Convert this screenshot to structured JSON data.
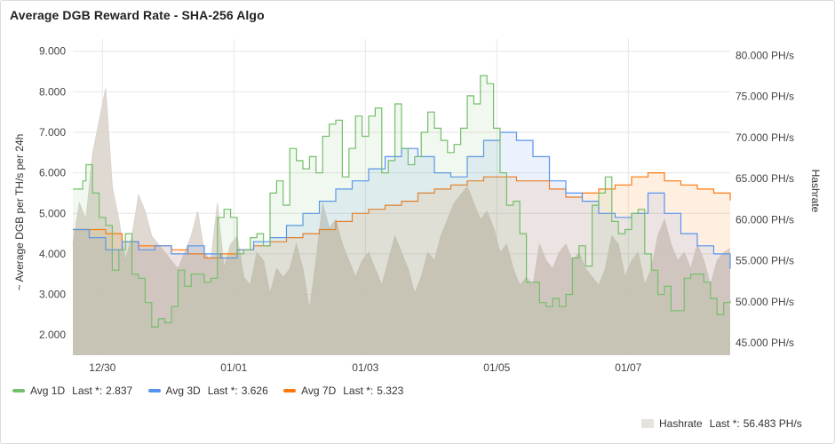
{
  "panel": {
    "title": "Average DGB Reward Rate - SHA-256 Algo"
  },
  "chart_data": {
    "type": "line",
    "title": "Average DGB Reward Rate - SHA-256 Algo",
    "ylabel": "~ Average DGB per TH/s per 24h",
    "ylabel_right": "Hashrate",
    "ylim": [
      1.5,
      9.3
    ],
    "ylim_right": [
      43.5,
      82.0
    ],
    "yticks": [
      "2.000",
      "3.000",
      "4.000",
      "5.000",
      "6.000",
      "7.000",
      "8.000",
      "9.000"
    ],
    "yticks_right": [
      "45.000 PH/s",
      "50.000 PH/s",
      "55.000 PH/s",
      "60.000 PH/s",
      "65.000 PH/s",
      "70.000 PH/s",
      "75.000 PH/s",
      "80.000 PH/s"
    ],
    "xlim": [
      0,
      10
    ],
    "xticks": [
      {
        "x": 0.45,
        "label": "12/30"
      },
      {
        "x": 2.45,
        "label": "01/01"
      },
      {
        "x": 4.45,
        "label": "01/03"
      },
      {
        "x": 6.45,
        "label": "01/05"
      },
      {
        "x": 8.45,
        "label": "01/07"
      }
    ],
    "grid": true,
    "legend_position": "bottom",
    "series": [
      {
        "name": "Avg 1D",
        "color": "#73bf69",
        "axis": "left",
        "last": "2.837",
        "x": [
          0,
          0.15,
          0.2,
          0.3,
          0.4,
          0.5,
          0.6,
          0.7,
          0.8,
          0.9,
          1.0,
          1.1,
          1.2,
          1.3,
          1.4,
          1.5,
          1.6,
          1.7,
          1.8,
          1.9,
          2.0,
          2.1,
          2.2,
          2.3,
          2.4,
          2.5,
          2.6,
          2.7,
          2.8,
          2.9,
          3.0,
          3.1,
          3.2,
          3.3,
          3.4,
          3.5,
          3.6,
          3.7,
          3.8,
          3.9,
          4.0,
          4.1,
          4.2,
          4.3,
          4.4,
          4.5,
          4.6,
          4.7,
          4.8,
          4.9,
          5.0,
          5.1,
          5.2,
          5.3,
          5.4,
          5.5,
          5.6,
          5.7,
          5.8,
          5.9,
          6.0,
          6.1,
          6.2,
          6.3,
          6.4,
          6.5,
          6.6,
          6.7,
          6.8,
          6.9,
          7.0,
          7.1,
          7.2,
          7.3,
          7.4,
          7.5,
          7.6,
          7.7,
          7.8,
          7.9,
          8.0,
          8.1,
          8.2,
          8.3,
          8.4,
          8.5,
          8.6,
          8.7,
          8.8,
          8.9,
          9.0,
          9.1,
          9.2,
          9.3,
          9.4,
          9.5,
          9.6,
          9.7,
          9.8,
          9.9,
          10.0
        ],
        "y": [
          5.6,
          5.8,
          6.2,
          5.5,
          4.9,
          4.7,
          3.6,
          4.1,
          4.5,
          3.5,
          3.4,
          2.8,
          2.2,
          2.4,
          2.3,
          2.7,
          3.6,
          3.2,
          3.5,
          3.5,
          3.3,
          3.4,
          4.9,
          5.1,
          4.9,
          4.0,
          4.1,
          4.4,
          4.5,
          4.2,
          5.5,
          5.8,
          5.2,
          6.6,
          6.3,
          6.1,
          6.4,
          6.0,
          6.9,
          7.2,
          7.3,
          5.9,
          6.6,
          7.4,
          6.9,
          7.4,
          7.6,
          6.0,
          6.3,
          7.7,
          6.6,
          6.2,
          6.4,
          7.0,
          7.5,
          7.1,
          6.8,
          6.5,
          6.7,
          7.1,
          7.9,
          7.7,
          8.4,
          8.2,
          7.1,
          6.0,
          5.2,
          5.3,
          4.5,
          3.3,
          3.3,
          2.8,
          2.7,
          2.9,
          2.7,
          3.0,
          3.9,
          4.2,
          3.7,
          5.2,
          5.5,
          5.9,
          4.8,
          4.5,
          4.6,
          5.0,
          5.1,
          4.0,
          3.6,
          3.0,
          3.2,
          2.6,
          2.6,
          3.4,
          3.5,
          3.5,
          3.3,
          2.9,
          2.5,
          2.8,
          2.84
        ]
      },
      {
        "name": "Avg 3D",
        "color": "#5794f2",
        "axis": "left",
        "last": "3.626",
        "x": [
          0,
          0.25,
          0.5,
          0.75,
          1.0,
          1.25,
          1.5,
          1.75,
          2.0,
          2.25,
          2.5,
          2.75,
          3.0,
          3.25,
          3.5,
          3.75,
          4.0,
          4.25,
          4.5,
          4.75,
          5.0,
          5.25,
          5.5,
          5.75,
          6.0,
          6.25,
          6.5,
          6.75,
          7.0,
          7.25,
          7.5,
          7.75,
          8.0,
          8.25,
          8.5,
          8.75,
          9.0,
          9.25,
          9.5,
          9.75,
          10.0
        ],
        "y": [
          4.6,
          4.4,
          4.1,
          4.3,
          4.1,
          4.2,
          4.0,
          4.2,
          4.0,
          3.9,
          4.1,
          4.3,
          4.4,
          4.7,
          5.0,
          5.3,
          5.6,
          5.8,
          6.1,
          6.4,
          6.6,
          6.4,
          6.0,
          5.9,
          6.4,
          6.8,
          7.0,
          6.8,
          6.4,
          5.8,
          5.5,
          5.3,
          5.0,
          4.9,
          5.0,
          5.5,
          5.0,
          4.5,
          4.2,
          4.0,
          3.63
        ]
      },
      {
        "name": "Avg 7D",
        "color": "#ff780a",
        "axis": "left",
        "last": "5.323",
        "x": [
          0,
          0.25,
          0.5,
          0.75,
          1.0,
          1.25,
          1.5,
          1.75,
          2.0,
          2.25,
          2.5,
          2.75,
          3.0,
          3.25,
          3.5,
          3.75,
          4.0,
          4.25,
          4.5,
          4.75,
          5.0,
          5.25,
          5.5,
          5.75,
          6.0,
          6.25,
          6.5,
          6.75,
          7.0,
          7.25,
          7.5,
          7.75,
          8.0,
          8.25,
          8.5,
          8.75,
          9.0,
          9.25,
          9.5,
          9.75,
          10.0
        ],
        "y": [
          4.6,
          4.6,
          4.5,
          4.3,
          4.2,
          4.2,
          4.1,
          4.0,
          3.9,
          4.0,
          4.1,
          4.2,
          4.3,
          4.4,
          4.5,
          4.6,
          4.8,
          5.0,
          5.1,
          5.2,
          5.3,
          5.5,
          5.6,
          5.7,
          5.8,
          5.9,
          5.9,
          5.8,
          5.8,
          5.6,
          5.4,
          5.5,
          5.6,
          5.7,
          5.9,
          6.0,
          5.8,
          5.7,
          5.6,
          5.5,
          5.32
        ]
      },
      {
        "name": "Hashrate",
        "color": "#dcd5cd",
        "axis": "right",
        "last": "56.483 PH/s",
        "x": [
          0,
          0.1,
          0.2,
          0.3,
          0.4,
          0.5,
          0.6,
          0.7,
          0.8,
          0.9,
          1.0,
          1.1,
          1.2,
          1.3,
          1.4,
          1.5,
          1.6,
          1.7,
          1.8,
          1.9,
          2.0,
          2.1,
          2.2,
          2.3,
          2.4,
          2.5,
          2.6,
          2.7,
          2.8,
          2.9,
          3.0,
          3.1,
          3.2,
          3.3,
          3.4,
          3.5,
          3.6,
          3.7,
          3.8,
          3.9,
          4.0,
          4.1,
          4.2,
          4.3,
          4.4,
          4.5,
          4.6,
          4.7,
          4.8,
          4.9,
          5.0,
          5.1,
          5.2,
          5.3,
          5.4,
          5.5,
          5.6,
          5.7,
          5.8,
          5.9,
          6.0,
          6.1,
          6.2,
          6.3,
          6.4,
          6.5,
          6.6,
          6.7,
          6.8,
          6.9,
          7.0,
          7.1,
          7.2,
          7.3,
          7.4,
          7.5,
          7.6,
          7.7,
          7.8,
          7.9,
          8.0,
          8.1,
          8.2,
          8.3,
          8.4,
          8.5,
          8.6,
          8.7,
          8.8,
          8.9,
          9.0,
          9.1,
          9.2,
          9.3,
          9.4,
          9.5,
          9.6,
          9.7,
          9.8,
          9.9,
          10.0
        ],
        "y": [
          57,
          62,
          60,
          68,
          72,
          76,
          64,
          60,
          55,
          58,
          63,
          61,
          58,
          57,
          56,
          55,
          54,
          56,
          58,
          61,
          56,
          55,
          62,
          54,
          57,
          58,
          53,
          52,
          56,
          55,
          51,
          54,
          53,
          54,
          57,
          54,
          49,
          55,
          62,
          59,
          60,
          57,
          55,
          53,
          55,
          56,
          54,
          52,
          55,
          58,
          56,
          54,
          51,
          53,
          56,
          55,
          58,
          60,
          62,
          63,
          64,
          62,
          60,
          61,
          59,
          56,
          57,
          54,
          52,
          53,
          52,
          57,
          55,
          54,
          56,
          57,
          55,
          56,
          54,
          53,
          52,
          54,
          58,
          57,
          53,
          55,
          56,
          52,
          54,
          58,
          60,
          57,
          55,
          56,
          54,
          57,
          55,
          52,
          55,
          56,
          56.5
        ]
      }
    ]
  },
  "legend": {
    "last_label": "Last *:",
    "items": [
      {
        "name": "Avg 1D",
        "last": "2.837"
      },
      {
        "name": "Avg 3D",
        "last": "3.626"
      },
      {
        "name": "Avg 7D",
        "last": "5.323"
      }
    ],
    "hashrate": {
      "name": "Hashrate",
      "last": "56.483 PH/s"
    }
  },
  "colors": {
    "avg1d": "#73bf69",
    "avg3d": "#5794f2",
    "avg7d": "#ff780a",
    "hashrate": "#dcd5cd",
    "grid": "#e4e4e4"
  }
}
